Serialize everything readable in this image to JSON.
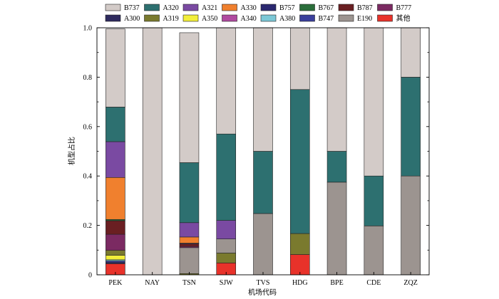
{
  "chart_data": {
    "type": "bar",
    "stacked": true,
    "title": "",
    "xlabel": "机场代码",
    "ylabel": "机型占比",
    "ylim": [
      0,
      1.0
    ],
    "yticks": [
      "0",
      "0.2",
      "0.4",
      "0.6",
      "0.8",
      "1.0"
    ],
    "ytick_values": [
      0,
      0.2,
      0.4,
      0.6,
      0.8,
      1.0
    ],
    "categories": [
      "PEK",
      "NAY",
      "TSN",
      "SJW",
      "TVS",
      "HDG",
      "BPE",
      "CDE",
      "ZQZ"
    ],
    "legend_position": "top",
    "series": [
      {
        "name": "其他",
        "color": "#e8322a",
        "values": [
          0.045,
          0,
          0,
          0.048,
          0,
          0.082,
          0,
          0,
          0
        ]
      },
      {
        "name": "A300",
        "color": "#2e2a5e",
        "values": [
          0.005,
          0,
          0,
          0,
          0,
          0,
          0,
          0,
          0
        ]
      },
      {
        "name": "B747",
        "color": "#3b3f9c",
        "values": [
          0.006,
          0,
          0,
          0,
          0,
          0,
          0,
          0,
          0
        ]
      },
      {
        "name": "A380",
        "color": "#7cc8d6",
        "values": [
          0.005,
          0,
          0,
          0,
          0,
          0,
          0,
          0,
          0
        ]
      },
      {
        "name": "A350",
        "color": "#f2ee3a",
        "values": [
          0.018,
          0,
          0,
          0,
          0,
          0,
          0,
          0,
          0
        ]
      },
      {
        "name": "A319",
        "color": "#7a7a2e",
        "values": [
          0.02,
          0,
          0.005,
          0.04,
          0,
          0.085,
          0,
          0,
          0
        ]
      },
      {
        "name": "E190",
        "color": "#9c9490",
        "values": [
          0,
          0,
          0.105,
          0.057,
          0.248,
          0,
          0.375,
          0.198,
          0.4
        ]
      },
      {
        "name": "B777",
        "color": "#7b2a62",
        "values": [
          0.065,
          0,
          0.005,
          0,
          0,
          0,
          0,
          0,
          0
        ]
      },
      {
        "name": "B787",
        "color": "#6a1f22",
        "values": [
          0.055,
          0,
          0.01,
          0,
          0,
          0,
          0,
          0,
          0
        ]
      },
      {
        "name": "B767",
        "color": "#2a6e3a",
        "values": [
          0.005,
          0,
          0,
          0,
          0,
          0,
          0,
          0,
          0
        ]
      },
      {
        "name": "B757",
        "color": "#2a2870",
        "values": [
          0,
          0,
          0.003,
          0,
          0,
          0,
          0,
          0,
          0
        ]
      },
      {
        "name": "A340",
        "color": "#b04aa0",
        "values": [
          0,
          0,
          0,
          0,
          0,
          0,
          0,
          0,
          0
        ]
      },
      {
        "name": "A330",
        "color": "#f0802e",
        "values": [
          0.17,
          0,
          0.025,
          0,
          0,
          0,
          0,
          0,
          0
        ]
      },
      {
        "name": "A321",
        "color": "#7a4aa2",
        "values": [
          0.145,
          0,
          0.058,
          0.075,
          0,
          0,
          0,
          0,
          0
        ]
      },
      {
        "name": "A320",
        "color": "#2d7070",
        "values": [
          0.14,
          0,
          0.243,
          0.35,
          0.252,
          0.583,
          0.125,
          0.202,
          0.4
        ]
      },
      {
        "name": "B737",
        "color": "#d3cbc8",
        "values": [
          0.316,
          1.0,
          0.526,
          0.43,
          0.5,
          0.25,
          0.5,
          0.6,
          0.2
        ]
      }
    ],
    "legend_order": [
      "B737",
      "A320",
      "A321",
      "A330",
      "B757",
      "B767",
      "B787",
      "B777",
      "A300",
      "A319",
      "A350",
      "A340",
      "A380",
      "B747",
      "E190",
      "其他"
    ]
  }
}
